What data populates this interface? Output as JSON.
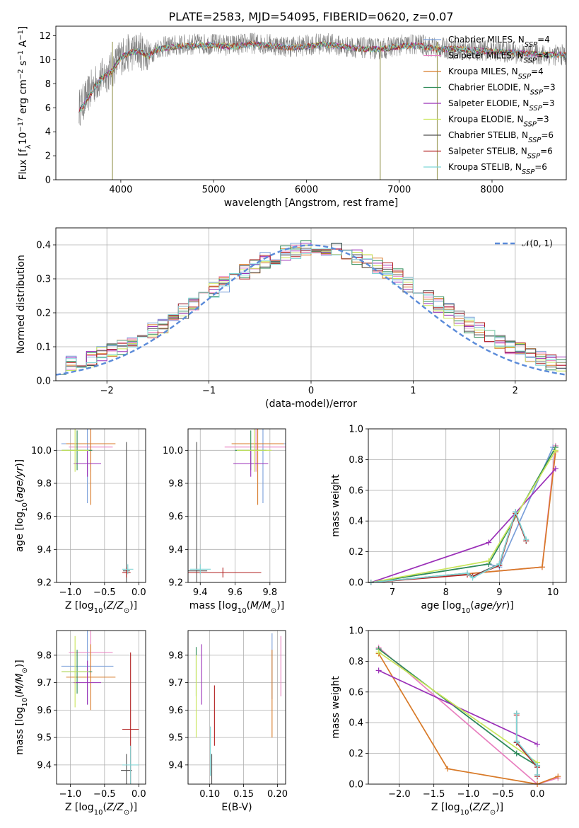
{
  "title": "PLATE=2583, MJD=54095, FIBERID=0620, z=0.07",
  "series": [
    {
      "name": "Chabrier MILES, N_SSP=4",
      "base": "Chabrier MILES, N",
      "sub": "SSP",
      "eq": "=4",
      "color": "#7a9fd9"
    },
    {
      "name": "Salpeter MILES, N_SSP=4",
      "base": "Salpeter MILES, N",
      "sub": "SSP",
      "eq": "=4",
      "color": "#e87fbf"
    },
    {
      "name": "Kroupa MILES, N_SSP=4",
      "base": "Kroupa MILES, N",
      "sub": "SSP",
      "eq": "=4",
      "color": "#d87a28"
    },
    {
      "name": "Chabrier ELODIE, N_SSP=3",
      "base": "Chabrier ELODIE, N",
      "sub": "SSP",
      "eq": "=3",
      "color": "#2e8b57"
    },
    {
      "name": "Salpeter ELODIE, N_SSP=3",
      "base": "Salpeter ELODIE, N",
      "sub": "SSP",
      "eq": "=3",
      "color": "#9b30b8"
    },
    {
      "name": "Kroupa ELODIE, N_SSP=3",
      "base": "Kroupa ELODIE, N",
      "sub": "SSP",
      "eq": "=3",
      "color": "#c9e55a"
    },
    {
      "name": "Chabrier STELIB, N_SSP=6",
      "base": "Chabrier STELIB, N",
      "sub": "SSP",
      "eq": "=6",
      "color": "#505050"
    },
    {
      "name": "Salpeter STELIB, N_SSP=6",
      "base": "Salpeter STELIB, N",
      "sub": "SSP",
      "eq": "=6",
      "color": "#b22222"
    },
    {
      "name": "Kroupa STELIB, N_SSP=6",
      "base": "Kroupa STELIB, N",
      "sub": "SSP",
      "eq": "=6",
      "color": "#7fd6d6"
    }
  ],
  "chart_data": [
    {
      "id": "spectrum",
      "type": "line",
      "xlabel": "wavelength [Angstrom, rest frame]",
      "ylabel": "Flux [f_λ 10^-17 erg cm^-2 s^-1 A^-1]",
      "xlim": [
        3300,
        8800
      ],
      "ylim": [
        0,
        12.8
      ],
      "xticks": [
        4000,
        5000,
        6000,
        7000,
        8000
      ],
      "yticks": [
        0,
        2,
        4,
        6,
        8,
        10,
        12
      ],
      "observed_color": "#808080",
      "observed": {
        "x": [
          3550,
          3600,
          3700,
          3800,
          3900,
          4000,
          4100,
          4200,
          4300,
          4400,
          4600,
          4800,
          5000,
          5200,
          5400,
          5600,
          5800,
          6000,
          6200,
          6400,
          6600,
          6800,
          7000,
          7200,
          7400,
          7600,
          7800,
          8000,
          8200,
          8400,
          8600,
          8800
        ],
        "y": [
          6.0,
          6.5,
          7.8,
          8.6,
          9.1,
          10.3,
          10.6,
          10.8,
          10.4,
          11.0,
          11.2,
          11.3,
          11.3,
          11.2,
          11.4,
          11.3,
          11.1,
          11.2,
          11.4,
          11.1,
          11.0,
          10.9,
          11.2,
          11.3,
          11.0,
          10.9,
          10.8,
          10.8,
          10.6,
          10.5,
          10.4,
          10.4
        ],
        "noise": 0.9
      },
      "model": {
        "x": [
          3550,
          3600,
          3700,
          3800,
          3900,
          4000,
          4100,
          4200,
          4300,
          4400,
          4600,
          4800,
          5000,
          5200,
          5400,
          5600,
          5800,
          6000,
          6200,
          6400,
          6600,
          6800,
          7000,
          7200,
          7400,
          7600,
          7800,
          8000,
          8200,
          8400,
          8600,
          8800
        ],
        "y": [
          5.8,
          6.2,
          7.5,
          8.5,
          9.0,
          10.2,
          10.6,
          10.7,
          10.3,
          10.9,
          11.1,
          11.2,
          11.2,
          11.1,
          11.3,
          11.2,
          11.0,
          11.1,
          11.3,
          11.1,
          10.9,
          10.9,
          11.1,
          11.2,
          10.9,
          10.9,
          10.8,
          10.7,
          10.6,
          10.5,
          10.4,
          10.4
        ]
      },
      "dips": [
        {
          "x": 3910,
          "y": 0
        },
        {
          "x": 6795,
          "y": 0
        },
        {
          "x": 7410,
          "y": 0
        }
      ]
    },
    {
      "id": "residuals",
      "type": "line",
      "xlabel": "(data-model)/error",
      "ylabel": "Normed distribution",
      "xlim": [
        -2.5,
        2.5
      ],
      "ylim": [
        0,
        0.45
      ],
      "xticks": [
        -2,
        -1,
        0,
        1,
        2
      ],
      "xtick_labels": [
        "−2",
        "−1",
        "0",
        "1",
        "2"
      ],
      "yticks": [
        0.0,
        0.1,
        0.2,
        0.3,
        0.4
      ],
      "gaussian_label": "𝒩(0, 1)",
      "gaussian_color": "#5b8bd9",
      "bin_width": 0.1
    },
    {
      "id": "age_vs_Z",
      "type": "scatter",
      "xlabel": "Z [log10(Z/Z⊙)]",
      "ylabel": "age  [log10(age/yr)]",
      "xlim": [
        -1.2,
        0.1
      ],
      "ylim": [
        9.2,
        10.13
      ],
      "xticks": [
        -1.0,
        -0.5,
        0.0
      ],
      "xtick_labels": [
        "−1.0",
        "−0.5",
        "0.0"
      ],
      "yticks": [
        9.2,
        9.4,
        9.6,
        9.8,
        10.0
      ],
      "points": [
        {
          "s": 0,
          "x": -0.75,
          "y": 10.04,
          "xe": 0.38,
          "ye": 0.36
        },
        {
          "s": 1,
          "x": -0.7,
          "y": 10.02,
          "xe": 0.32,
          "ye": 0.15
        },
        {
          "s": 2,
          "x": -0.7,
          "y": 10.04,
          "xe": 0.36,
          "ye": 0.37
        },
        {
          "s": 3,
          "x": -0.9,
          "y": 10.0,
          "xe": 0.22,
          "ye": 0.12
        },
        {
          "s": 4,
          "x": -0.75,
          "y": 9.92,
          "xe": 0.2,
          "ye": 0.08
        },
        {
          "s": 5,
          "x": -0.93,
          "y": 10.0,
          "xe": 0.2,
          "ye": 0.13
        },
        {
          "s": 6,
          "x": -0.18,
          "y": 9.27,
          "xe": 0.05,
          "ye": 0.78
        },
        {
          "s": 7,
          "x": -0.18,
          "y": 9.26,
          "xe": 0.06,
          "ye": 0.03
        },
        {
          "s": 8,
          "x": -0.16,
          "y": 9.28,
          "xe": 0.08,
          "ye": 0.03
        }
      ]
    },
    {
      "id": "age_vs_mass",
      "type": "scatter",
      "xlabel": "mass [log10(M/M⊙)]",
      "ylabel": "",
      "xlim": [
        9.33,
        9.89
      ],
      "ylim": [
        9.2,
        10.13
      ],
      "xticks": [
        9.4,
        9.6,
        9.8
      ],
      "yticks": [
        9.2,
        9.4,
        9.6,
        9.8,
        10.0
      ],
      "points": [
        {
          "s": 0,
          "x": 9.76,
          "y": 10.04,
          "xe": 0.14,
          "ye": 0.36
        },
        {
          "s": 1,
          "x": 9.72,
          "y": 10.02,
          "xe": 0.18,
          "ye": 0.15
        },
        {
          "s": 2,
          "x": 9.73,
          "y": 10.04,
          "xe": 0.15,
          "ye": 0.37
        },
        {
          "s": 3,
          "x": 9.69,
          "y": 10.0,
          "xe": 0.09,
          "ye": 0.12
        },
        {
          "s": 4,
          "x": 9.69,
          "y": 9.92,
          "xe": 0.1,
          "ye": 0.08
        },
        {
          "s": 5,
          "x": 9.71,
          "y": 10.0,
          "xe": 0.1,
          "ye": 0.13
        },
        {
          "s": 6,
          "x": 9.38,
          "y": 9.27,
          "xe": 0.06,
          "ye": 0.78
        },
        {
          "s": 7,
          "x": 9.53,
          "y": 9.26,
          "xe": 0.22,
          "ye": 0.03
        },
        {
          "s": 8,
          "x": 9.4,
          "y": 9.28,
          "xe": 0.06,
          "ye": 0.03
        }
      ]
    },
    {
      "id": "weight_vs_age",
      "type": "line",
      "xlabel": "age  [log10(age/yr)]",
      "ylabel": "mass weight",
      "xlim": [
        6.55,
        10.25
      ],
      "ylim": [
        0,
        1.0
      ],
      "xticks": [
        7,
        8,
        9,
        10
      ],
      "yticks": [
        0.0,
        0.2,
        0.4,
        0.6,
        0.8,
        1.0
      ],
      "lines": [
        {
          "s": 0,
          "x": [
            6.6,
            8.8,
            9.0,
            10.0
          ],
          "y": [
            0.0,
            0.12,
            0.1,
            0.88
          ]
        },
        {
          "s": 1,
          "x": [
            6.6,
            9.8,
            10.05
          ],
          "y": [
            0.0,
            0.1,
            0.89
          ]
        },
        {
          "s": 2,
          "x": [
            6.6,
            9.8,
            10.05
          ],
          "y": [
            0.0,
            0.1,
            0.85
          ]
        },
        {
          "s": 3,
          "x": [
            6.6,
            8.8,
            10.05
          ],
          "y": [
            0.0,
            0.12,
            0.88
          ]
        },
        {
          "s": 4,
          "x": [
            6.6,
            8.8,
            10.05
          ],
          "y": [
            0.0,
            0.26,
            0.74
          ]
        },
        {
          "s": 5,
          "x": [
            6.6,
            8.8,
            10.05
          ],
          "y": [
            0.0,
            0.14,
            0.86
          ]
        },
        {
          "s": 6,
          "x": [
            6.6,
            8.4,
            8.5,
            9.0,
            9.3,
            9.5
          ],
          "y": [
            0.0,
            0.06,
            0.04,
            0.12,
            0.46,
            0.27
          ]
        },
        {
          "s": 7,
          "x": [
            6.6,
            8.4,
            8.5,
            9.0,
            9.3,
            9.5
          ],
          "y": [
            0.0,
            0.05,
            0.04,
            0.11,
            0.45,
            0.27
          ]
        },
        {
          "s": 8,
          "x": [
            6.6,
            8.4,
            8.5,
            9.0,
            9.3,
            9.5
          ],
          "y": [
            0.0,
            0.06,
            0.03,
            0.12,
            0.46,
            0.28
          ]
        }
      ]
    },
    {
      "id": "mass_vs_Z",
      "type": "scatter",
      "xlabel": "Z [log10(Z/Z⊙)]",
      "ylabel": "mass [log10(M/M⊙)]",
      "xlim": [
        -1.2,
        0.1
      ],
      "ylim": [
        9.33,
        9.89
      ],
      "xticks": [
        -1.0,
        -0.5,
        0.0
      ],
      "xtick_labels": [
        "−1.0",
        "−0.5",
        "0.0"
      ],
      "yticks": [
        9.4,
        9.5,
        9.6,
        9.7,
        9.8
      ],
      "points": [
        {
          "s": 0,
          "x": -0.75,
          "y": 9.76,
          "xe": 0.38,
          "ye": 0.14
        },
        {
          "s": 1,
          "x": -0.7,
          "y": 9.81,
          "xe": 0.32,
          "ye": 0.08
        },
        {
          "s": 2,
          "x": -0.7,
          "y": 9.72,
          "xe": 0.36,
          "ye": 0.12
        },
        {
          "s": 3,
          "x": -0.9,
          "y": 9.74,
          "xe": 0.22,
          "ye": 0.08
        },
        {
          "s": 4,
          "x": -0.75,
          "y": 9.7,
          "xe": 0.2,
          "ye": 0.08
        },
        {
          "s": 5,
          "x": -0.93,
          "y": 9.74,
          "xe": 0.2,
          "ye": 0.13
        },
        {
          "s": 6,
          "x": -0.18,
          "y": 9.38,
          "xe": 0.08,
          "ye": 0.06
        },
        {
          "s": 7,
          "x": -0.12,
          "y": 9.53,
          "xe": 0.12,
          "ye": 0.28
        },
        {
          "s": 8,
          "x": -0.12,
          "y": 9.4,
          "xe": 0.12,
          "ye": 0.07
        }
      ]
    },
    {
      "id": "mass_vs_EBV",
      "type": "scatter",
      "xlabel": "E(B-V)",
      "ylabel": "",
      "xlim": [
        0.068,
        0.212
      ],
      "ylim": [
        9.33,
        9.89
      ],
      "xticks": [
        0.1,
        0.15,
        0.2
      ],
      "xtick_labels": [
        "0.10",
        "0.15",
        "0.20"
      ],
      "yticks": [
        9.4,
        9.5,
        9.6,
        9.7,
        9.8
      ],
      "points": [
        {
          "s": 0,
          "x": 0.192,
          "y": 9.76,
          "ye": 0.12
        },
        {
          "s": 1,
          "x": 0.205,
          "y": 9.76,
          "ye": 0.11
        },
        {
          "s": 2,
          "x": 0.192,
          "y": 9.66,
          "ye": 0.16
        },
        {
          "s": 3,
          "x": 0.08,
          "y": 9.74,
          "ye": 0.09
        },
        {
          "s": 4,
          "x": 0.088,
          "y": 9.73,
          "ye": 0.11
        },
        {
          "s": 5,
          "x": 0.08,
          "y": 9.65,
          "ye": 0.15
        },
        {
          "s": 6,
          "x": 0.103,
          "y": 9.38,
          "ye": 0.06
        },
        {
          "s": 7,
          "x": 0.107,
          "y": 9.58,
          "ye": 0.11
        },
        {
          "s": 8,
          "x": 0.101,
          "y": 9.45,
          "ye": 0.09
        }
      ]
    },
    {
      "id": "weight_vs_Z",
      "type": "line",
      "xlabel": "Z [log10(Z/Z⊙)]",
      "ylabel": "mass weight",
      "xlim": [
        -2.45,
        0.42
      ],
      "ylim": [
        0,
        1.0
      ],
      "xticks": [
        -2.0,
        -1.5,
        -1.0,
        -0.5,
        0.0
      ],
      "xtick_labels": [
        "−2.0",
        "−1.5",
        "−1.0",
        "−0.5",
        "0.0"
      ],
      "yticks": [
        0.0,
        0.2,
        0.4,
        0.6,
        0.8,
        1.0
      ],
      "lines": [
        {
          "s": 0,
          "x": [
            -2.3,
            -0.3,
            0.0
          ],
          "y": [
            0.88,
            0.2,
            0.12
          ]
        },
        {
          "s": 1,
          "x": [
            -2.3,
            0.0,
            0.3
          ],
          "y": [
            0.89,
            0.0,
            0.04
          ]
        },
        {
          "s": 2,
          "x": [
            -2.3,
            -1.3,
            0.0,
            0.3
          ],
          "y": [
            0.85,
            0.1,
            0.0,
            0.05
          ]
        },
        {
          "s": 3,
          "x": [
            -2.3,
            -0.3,
            0.0
          ],
          "y": [
            0.88,
            0.2,
            0.12
          ]
        },
        {
          "s": 4,
          "x": [
            -2.3,
            0.0
          ],
          "y": [
            0.74,
            0.26
          ]
        },
        {
          "s": 5,
          "x": [
            -2.3,
            0.0
          ],
          "y": [
            0.86,
            0.14
          ]
        },
        {
          "s": 6,
          "x": [
            -0.3,
            -0.3,
            0.0,
            0.0
          ],
          "y": [
            0.46,
            0.27,
            0.12,
            0.06
          ]
        },
        {
          "s": 7,
          "x": [
            -0.3,
            -0.3,
            0.0,
            0.0
          ],
          "y": [
            0.45,
            0.27,
            0.11,
            0.05
          ]
        },
        {
          "s": 8,
          "x": [
            -0.3,
            -0.3,
            0.0,
            0.0
          ],
          "y": [
            0.46,
            0.28,
            0.12,
            0.06
          ]
        }
      ]
    }
  ]
}
